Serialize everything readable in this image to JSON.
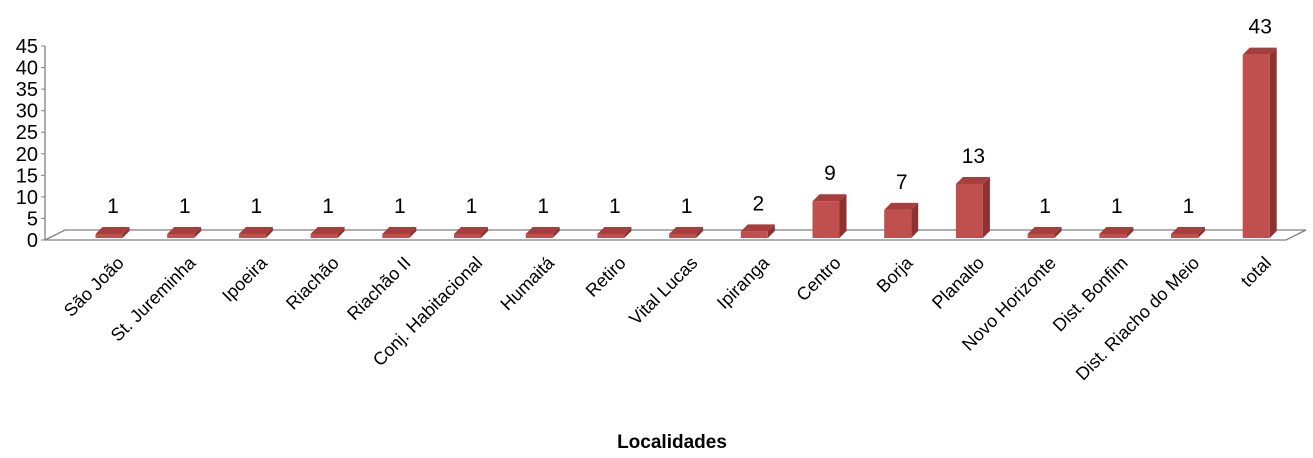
{
  "chart_data": {
    "type": "bar",
    "title": "",
    "xlabel": "Localidades",
    "ylabel": "",
    "ylim": [
      0,
      45
    ],
    "yticks": [
      0,
      5,
      10,
      15,
      20,
      25,
      30,
      35,
      40,
      45
    ],
    "categories": [
      "São João",
      "St. Jureminha",
      "Ipoeira",
      "Riachão",
      "Riachão II",
      "Conj. Habitacional",
      "Humaitá",
      "Retiro",
      "Vital Lucas",
      "Ipiranga",
      "Centro",
      "Borja",
      "Planalto",
      "Novo Horizonte",
      "Dist. Bonfim",
      "Dist. Riacho do Meio",
      "total"
    ],
    "values": [
      1,
      1,
      1,
      1,
      1,
      1,
      1,
      1,
      1,
      2,
      9,
      7,
      13,
      1,
      1,
      1,
      43
    ],
    "grid": false,
    "legend": "none",
    "style": "3d-column",
    "colors": {
      "bar_front": "#c0504d",
      "bar_side": "#8c3230",
      "bar_top": "#a83e3b",
      "floor": "#808080"
    }
  }
}
